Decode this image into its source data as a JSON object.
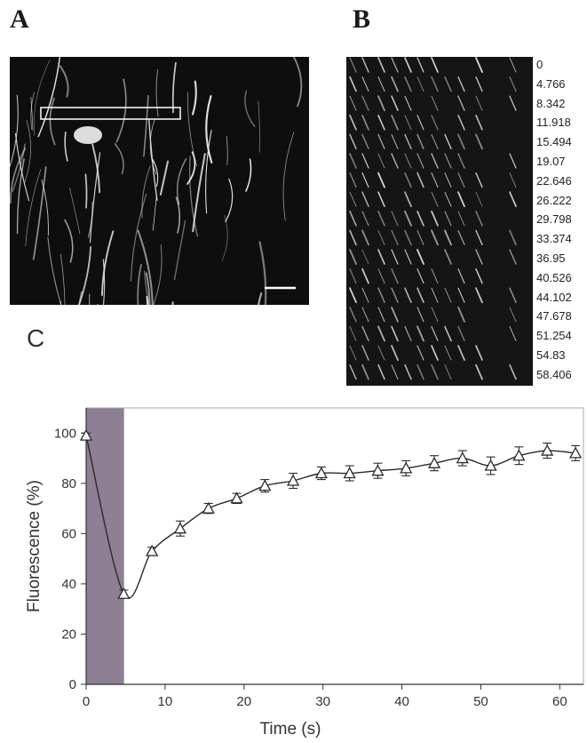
{
  "panels": {
    "a": "A",
    "b": "B",
    "c": "C"
  },
  "kymograph_times": [
    "0",
    "4.766",
    "8.342",
    "11.918",
    "15.494",
    "19.07",
    "22.646",
    "26.222",
    "29.798",
    "33.374",
    "36.95",
    "40.526",
    "44.102",
    "47.678",
    "51.254",
    "54.83",
    "58.406"
  ],
  "chart_data": {
    "type": "line",
    "xlabel": "Time (s)",
    "ylabel": "Fluorescence (%)",
    "xlim": [
      0,
      63
    ],
    "ylim": [
      0,
      110
    ],
    "xticks": [
      "0",
      "10",
      "20",
      "30",
      "40",
      "50",
      "60"
    ],
    "yticks": [
      "0",
      "20",
      "40",
      "60",
      "80",
      "100"
    ],
    "shaded_region": {
      "x_start": 0,
      "x_end": 4.8,
      "color": "#8e7f95"
    },
    "marker": "triangle-open",
    "series": [
      {
        "x": [
          0,
          4.766,
          8.342,
          11.918,
          15.494,
          19.07,
          22.646,
          26.222,
          29.798,
          33.374,
          36.95,
          40.526,
          44.102,
          47.678,
          51.254,
          54.83,
          58.406,
          62.0
        ],
        "y": [
          99,
          36,
          53,
          62,
          70,
          74,
          79,
          81,
          84,
          84,
          85,
          86,
          88,
          90,
          87,
          91,
          93,
          92
        ],
        "err": [
          1,
          1.5,
          1.5,
          3,
          2,
          2,
          2.5,
          3,
          2.5,
          3,
          3,
          3,
          3,
          3,
          3.5,
          3.5,
          3,
          3
        ]
      }
    ],
    "grid": false
  }
}
